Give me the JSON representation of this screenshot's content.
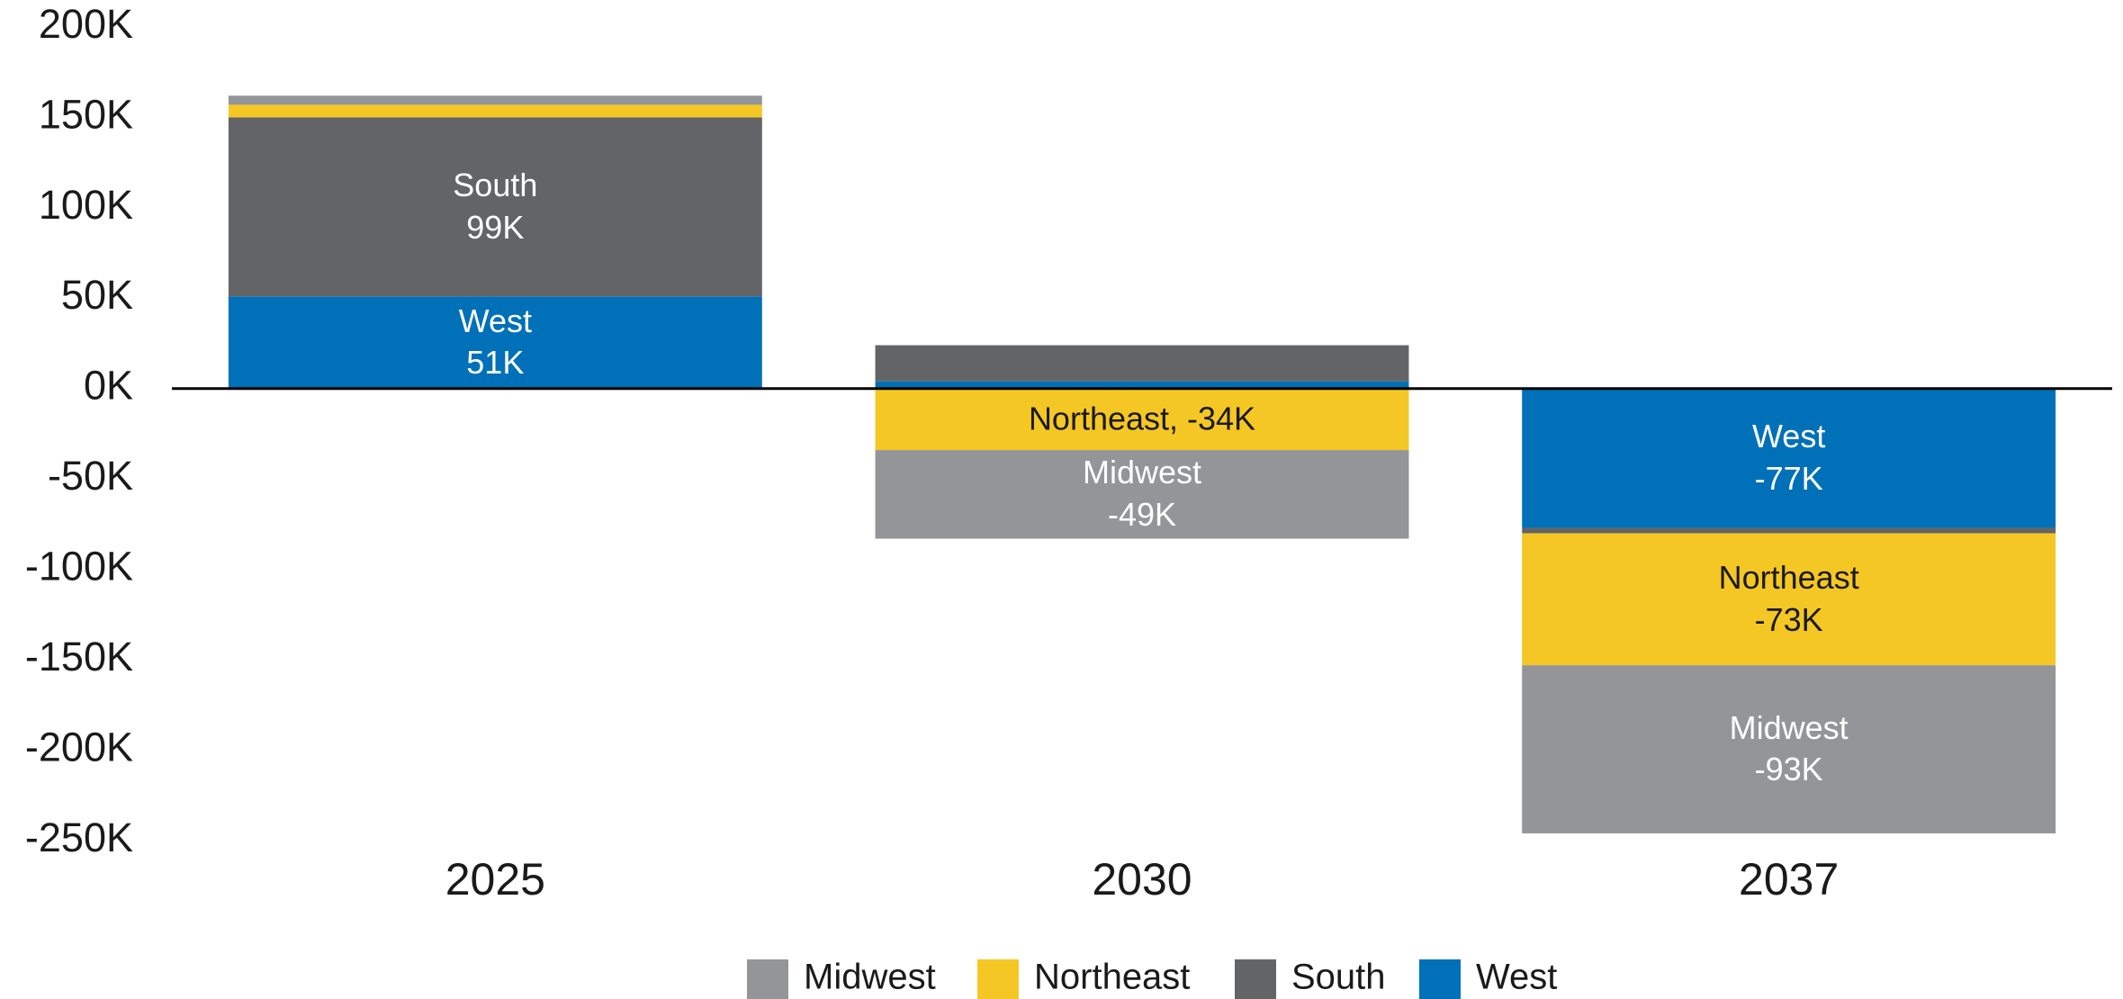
{
  "chart_data": {
    "type": "stacked_bar",
    "categories": [
      "2025",
      "2030",
      "2037"
    ],
    "series": [
      {
        "name": "Midwest",
        "color": "#939598",
        "label_color": "#ffffff",
        "values": [
          5000,
          -49000,
          -93000
        ],
        "value_labels": [
          null,
          "Midwest\n-49K",
          "Midwest\n-93K"
        ]
      },
      {
        "name": "Northeast",
        "color": "#f5c724",
        "label_color": "#1a1a1a",
        "values": [
          7000,
          -34000,
          -73000
        ],
        "value_labels": [
          null,
          "Northeast, -34K",
          "Northeast\n-73K"
        ]
      },
      {
        "name": "South",
        "color": "#636466",
        "label_color": "#ffffff",
        "values": [
          99000,
          20000,
          -3000
        ],
        "value_labels": [
          "South\n99K",
          null,
          null
        ]
      },
      {
        "name": "West",
        "color": "#0070b8",
        "label_color": "#ffffff",
        "values": [
          51000,
          4000,
          -77000
        ],
        "value_labels": [
          "West\n51K",
          null,
          "West\n-77K"
        ]
      }
    ],
    "ylim": [
      -250000,
      200000
    ],
    "yticks": [
      {
        "value": 200000,
        "label": "200K"
      },
      {
        "value": 150000,
        "label": "150K"
      },
      {
        "value": 100000,
        "label": "100K"
      },
      {
        "value": 50000,
        "label": "50K"
      },
      {
        "value": 0,
        "label": "0K"
      },
      {
        "value": -50000,
        "label": "-50K"
      },
      {
        "value": -100000,
        "label": "-100K"
      },
      {
        "value": -150000,
        "label": "-150K"
      },
      {
        "value": -200000,
        "label": "-200K"
      },
      {
        "value": -250000,
        "label": "-250K"
      }
    ],
    "grid": false,
    "legend": "bottom"
  }
}
